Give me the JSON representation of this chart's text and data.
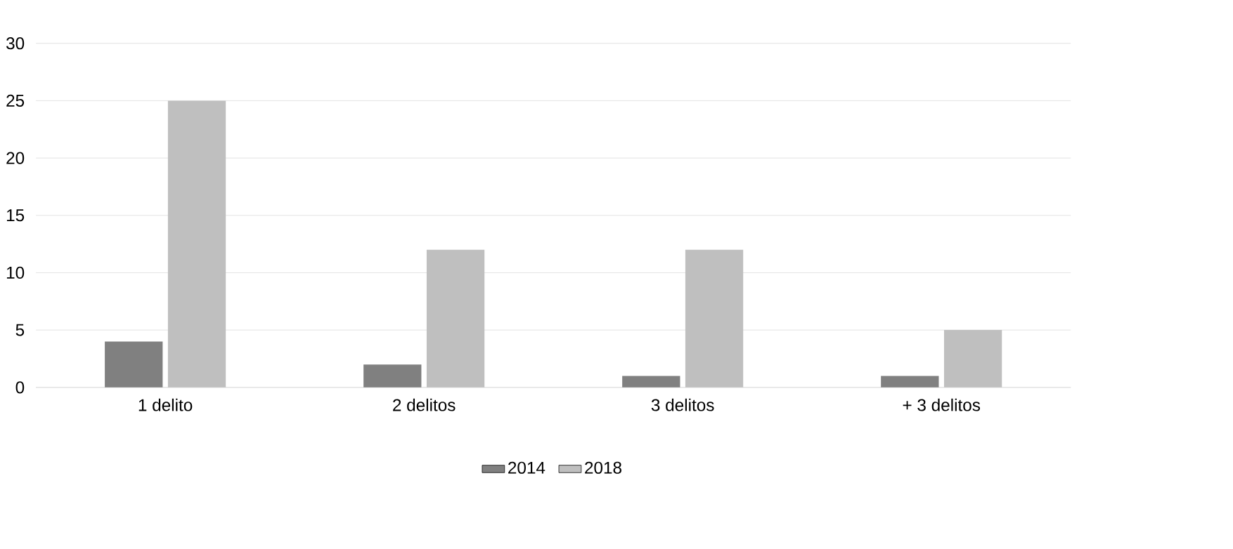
{
  "chart_data": {
    "type": "bar",
    "categories": [
      "1 delito",
      "2 delitos",
      "3 delitos",
      "+ 3 delitos"
    ],
    "series": [
      {
        "name": "2014",
        "color": "#808080",
        "values": [
          4,
          2,
          1,
          1
        ]
      },
      {
        "name": "2018",
        "color": "#bfbfbf",
        "values": [
          25,
          12,
          12,
          5
        ]
      }
    ],
    "ylim": [
      0,
      30
    ],
    "yticks": [
      0,
      5,
      10,
      15,
      20,
      25,
      30
    ],
    "grid": "y",
    "legend": "bottom"
  }
}
